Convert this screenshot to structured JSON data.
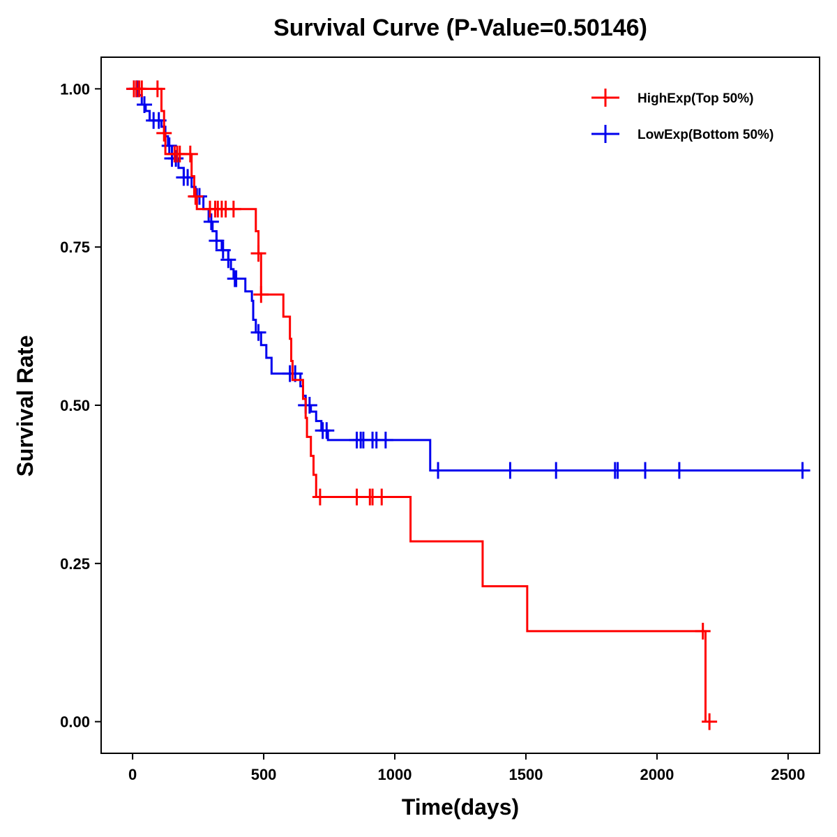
{
  "chart_data": {
    "type": "line",
    "subtype": "kaplan-meier step curve",
    "title": "Survival Curve (P-Value=0.50146)",
    "xlabel": "Time(days)",
    "ylabel": "Survival Rate",
    "xlim": [
      -120,
      2620
    ],
    "ylim": [
      -0.05,
      1.05
    ],
    "xticks": [
      0,
      500,
      1000,
      1500,
      2000,
      2500
    ],
    "xtick_labels": [
      "0",
      "500",
      "1000",
      "1500",
      "2000",
      "2500"
    ],
    "yticks": [
      0,
      0.25,
      0.5,
      0.75,
      1.0
    ],
    "ytick_labels": [
      "0.00",
      "0.25",
      "0.50",
      "0.75",
      "1.00"
    ],
    "grid": false,
    "legend_position": "top-right",
    "series": [
      {
        "name": "HighExp(Top 50%)",
        "color": "#ff0000",
        "steps": [
          [
            0,
            1.0
          ],
          [
            110,
            0.965
          ],
          [
            120,
            0.93
          ],
          [
            125,
            0.897
          ],
          [
            225,
            0.862
          ],
          [
            235,
            0.83
          ],
          [
            245,
            0.81
          ],
          [
            470,
            0.775
          ],
          [
            480,
            0.74
          ],
          [
            490,
            0.675
          ],
          [
            575,
            0.64
          ],
          [
            600,
            0.605
          ],
          [
            605,
            0.57
          ],
          [
            610,
            0.54
          ],
          [
            650,
            0.51
          ],
          [
            660,
            0.48
          ],
          [
            665,
            0.45
          ],
          [
            680,
            0.42
          ],
          [
            690,
            0.39
          ],
          [
            700,
            0.355
          ],
          [
            1060,
            0.285
          ],
          [
            1335,
            0.214
          ],
          [
            1505,
            0.143
          ],
          [
            2185,
            0.0
          ]
        ],
        "end_time": 2185,
        "censor_times": [
          5,
          15,
          25,
          35,
          95,
          120,
          160,
          170,
          180,
          220,
          240,
          295,
          315,
          325,
          340,
          355,
          385,
          480,
          490,
          715,
          855,
          905,
          915,
          950,
          2175,
          2200
        ]
      },
      {
        "name": "LowExp(Bottom 50%)",
        "color": "#0000ee",
        "steps": [
          [
            0,
            1.0
          ],
          [
            25,
            0.99
          ],
          [
            35,
            0.975
          ],
          [
            50,
            0.965
          ],
          [
            65,
            0.95
          ],
          [
            110,
            0.94
          ],
          [
            125,
            0.925
          ],
          [
            135,
            0.91
          ],
          [
            150,
            0.89
          ],
          [
            175,
            0.875
          ],
          [
            195,
            0.86
          ],
          [
            225,
            0.845
          ],
          [
            240,
            0.83
          ],
          [
            270,
            0.81
          ],
          [
            290,
            0.79
          ],
          [
            305,
            0.775
          ],
          [
            320,
            0.76
          ],
          [
            340,
            0.745
          ],
          [
            365,
            0.73
          ],
          [
            375,
            0.715
          ],
          [
            385,
            0.7
          ],
          [
            430,
            0.68
          ],
          [
            455,
            0.665
          ],
          [
            460,
            0.635
          ],
          [
            470,
            0.615
          ],
          [
            490,
            0.595
          ],
          [
            510,
            0.575
          ],
          [
            530,
            0.55
          ],
          [
            640,
            0.53
          ],
          [
            650,
            0.515
          ],
          [
            660,
            0.5
          ],
          [
            680,
            0.49
          ],
          [
            700,
            0.475
          ],
          [
            720,
            0.46
          ],
          [
            745,
            0.445
          ],
          [
            1135,
            0.397
          ]
        ],
        "end_time": 2565,
        "censor_times": [
          5,
          15,
          20,
          45,
          80,
          100,
          140,
          150,
          165,
          195,
          210,
          245,
          255,
          300,
          320,
          345,
          365,
          390,
          395,
          480,
          600,
          620,
          660,
          675,
          725,
          740,
          855,
          870,
          880,
          915,
          930,
          965,
          1165,
          1440,
          1615,
          1840,
          1850,
          1955,
          2085,
          2555
        ]
      }
    ]
  }
}
